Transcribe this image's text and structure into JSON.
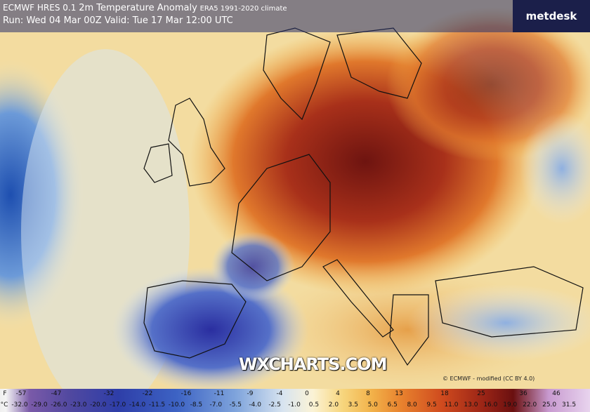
{
  "header": {
    "model": "ECMWF HRES 0.1",
    "title": "2m Temperature Anomaly",
    "climate": "ERA5 1991-2020 climate",
    "run": "Run: Wed 04 Mar 00Z Valid: Tue 17 Mar 12:00 UTC"
  },
  "logo": "metdesk",
  "watermark": "WXCHARTS.COM",
  "credit": "© ECMWF - modified (CC BY 4.0)",
  "legend": {
    "f_unit": "F",
    "f_labels": [
      "-57",
      "-47",
      "-32",
      "-22",
      "-16",
      "-11",
      "-9",
      "-4",
      "0",
      "4",
      "8",
      "13",
      "18",
      "25",
      "36",
      "46"
    ],
    "c_unit": "°C",
    "c_labels": [
      "-32.0",
      "-29.0",
      "-26.0",
      "-23.0",
      "-20.0",
      "-17.0",
      "-14.0",
      "-11.5",
      "-10.0",
      "-8.5",
      "-7.0",
      "-5.5",
      "-4.0",
      "-2.5",
      "-1.0",
      "0.5",
      "2.0",
      "3.5",
      "5.0",
      "6.5",
      "8.0",
      "9.5",
      "11.0",
      "13.0",
      "16.0",
      "19.0",
      "22.0",
      "25.0",
      "31.5"
    ]
  }
}
